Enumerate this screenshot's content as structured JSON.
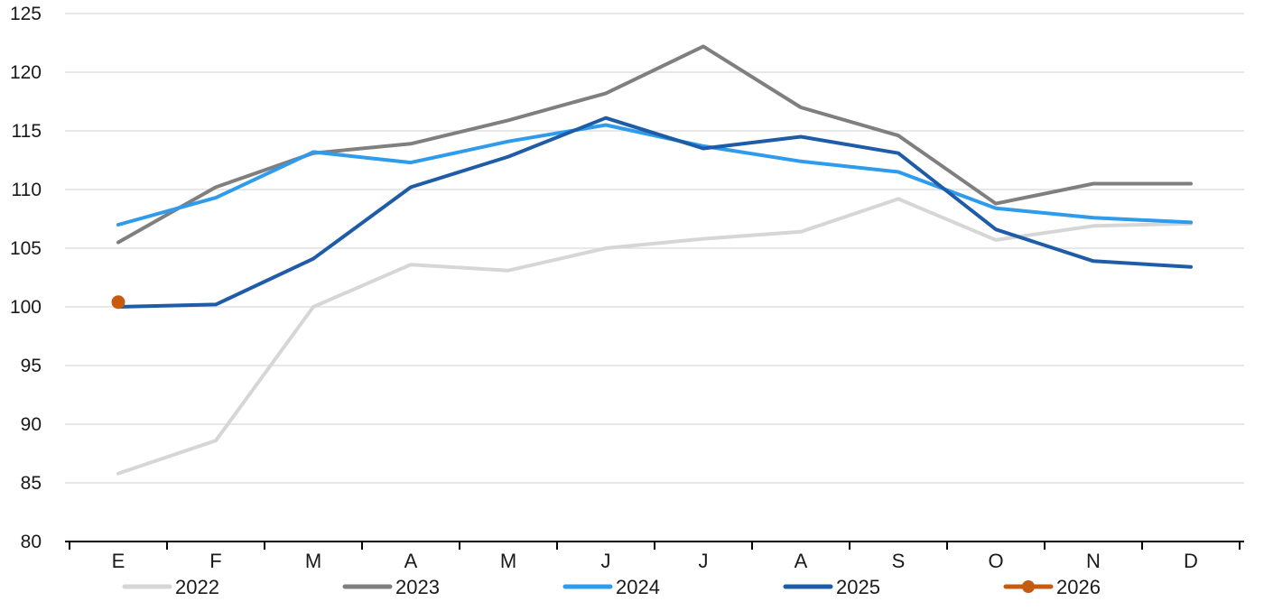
{
  "chart_data": {
    "type": "line",
    "title": "",
    "categories": [
      "E",
      "F",
      "M",
      "A",
      "M",
      "J",
      "J",
      "A",
      "S",
      "O",
      "N",
      "D"
    ],
    "y_axis": {
      "min": 80,
      "max": 125,
      "step": 5,
      "tick_labels": [
        "80",
        "85",
        "90",
        "95",
        "100",
        "105",
        "110",
        "115",
        "120",
        "125"
      ]
    },
    "grid": true,
    "gridline_color": "#d9d9d9",
    "axis_color": "#000000",
    "text_color": "#1a1a1a",
    "legend_position": "bottom",
    "series": [
      {
        "name": "2022",
        "color": "#d6d6d6",
        "marker": "none",
        "values": [
          85.8,
          88.6,
          100.0,
          103.6,
          103.1,
          105.0,
          105.8,
          106.4,
          109.2,
          105.7,
          106.9,
          107.1
        ]
      },
      {
        "name": "2023",
        "color": "#7f7f7f",
        "marker": "none",
        "values": [
          105.5,
          110.2,
          113.1,
          113.9,
          115.9,
          118.2,
          122.2,
          117.0,
          114.6,
          108.8,
          110.5,
          110.5
        ]
      },
      {
        "name": "2024",
        "color": "#2e9bec",
        "marker": "none",
        "values": [
          107.0,
          109.3,
          113.2,
          112.3,
          114.1,
          115.5,
          113.7,
          112.4,
          111.5,
          108.4,
          107.6,
          107.2
        ]
      },
      {
        "name": "2025",
        "color": "#1e5ca8",
        "marker": "none",
        "values": [
          100.0,
          100.2,
          104.1,
          110.2,
          112.8,
          116.1,
          113.5,
          114.5,
          113.1,
          106.6,
          103.9,
          103.4
        ]
      },
      {
        "name": "2026",
        "color": "#c55a11",
        "marker": "circle",
        "values": [
          100.4,
          null,
          null,
          null,
          null,
          null,
          null,
          null,
          null,
          null,
          null,
          null
        ]
      }
    ]
  }
}
